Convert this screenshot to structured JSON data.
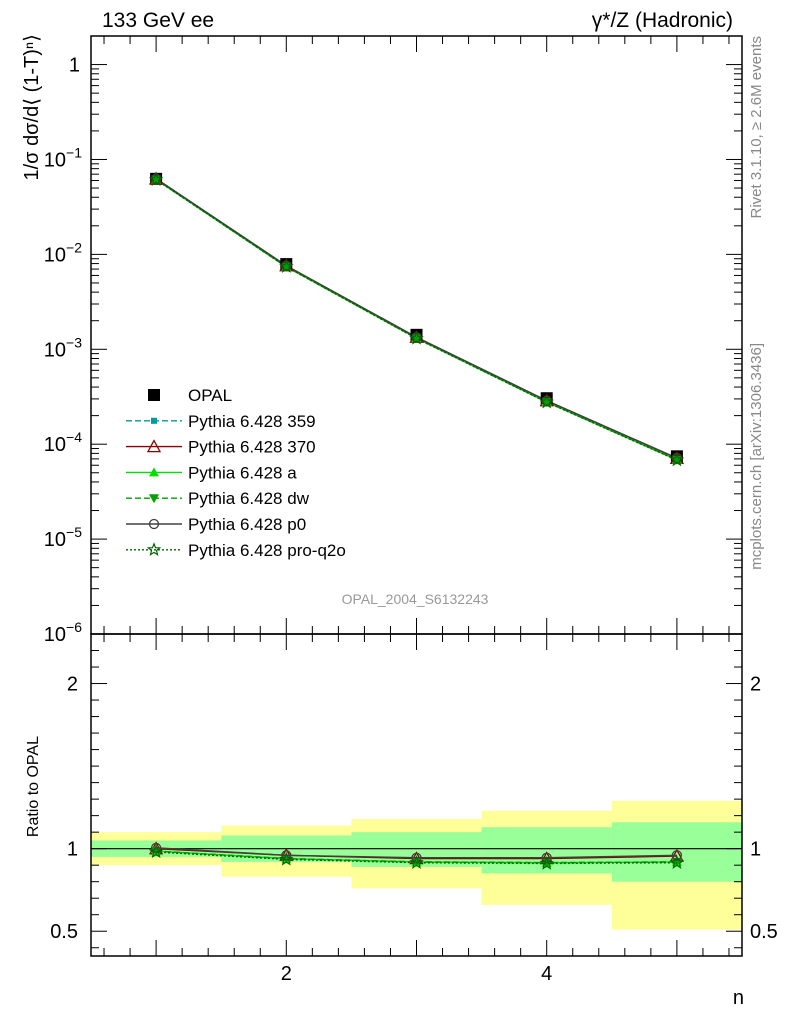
{
  "header": {
    "left": "133 GeV ee",
    "right": "γ*/Z (Hadronic)"
  },
  "side_labels": {
    "rivet": "Rivet 3.1.10, ≥ 2.6M events",
    "mcplots": "mcplots.cern.ch [arXiv:1306.3436]"
  },
  "watermark": "OPAL_2004_S6132243",
  "colors": {
    "ref": "#000000",
    "p359": "#009a9a",
    "p370": "#8b0000",
    "pa": "#00e000",
    "pdw": "#00a000",
    "pp0": "#404040",
    "pq2o": "#006400",
    "band_inner": "#99ff99",
    "band_outer": "#ffff99"
  },
  "chart_data": [
    {
      "type": "line",
      "panel": "main",
      "ylabel": "1/σ dσ/d⟨ (1-T)ⁿ⟩",
      "yscale": "log",
      "xlim": [
        0.5,
        5.5
      ],
      "ylim": [
        1e-06,
        2
      ],
      "y_ticks": [
        {
          "v": 1,
          "label": "1"
        },
        {
          "v": 0.1,
          "label": "10",
          "exp": "−1"
        },
        {
          "v": 0.01,
          "label": "10",
          "exp": "−2"
        },
        {
          "v": 0.001,
          "label": "10",
          "exp": "−3"
        },
        {
          "v": 0.0001,
          "label": "10",
          "exp": "−4"
        },
        {
          "v": 1e-05,
          "label": "10",
          "exp": "−5"
        },
        {
          "v": 1e-06,
          "label": "10",
          "exp": "−6"
        }
      ],
      "legend_position": "lower-left",
      "x": [
        1,
        2,
        3,
        4,
        5
      ],
      "series": [
        {
          "name": "OPAL",
          "key": "ref",
          "marker": "square",
          "line": "none",
          "values": [
            0.0625,
            0.0079,
            0.00142,
            0.000305,
            7.45e-05
          ]
        },
        {
          "name": "Pythia 6.428 359",
          "key": "p359",
          "marker": "smallsquare",
          "line": "dashed",
          "values": [
            0.0615,
            0.0074,
            0.00131,
            0.000278,
            6.85e-05
          ]
        },
        {
          "name": "Pythia 6.428 370",
          "key": "p370",
          "marker": "opentriangle",
          "line": "solid",
          "values": [
            0.0625,
            0.0076,
            0.00134,
            0.000287,
            7.1e-05
          ]
        },
        {
          "name": "Pythia 6.428 a",
          "key": "pa",
          "marker": "triangle",
          "line": "solid",
          "values": [
            0.0615,
            0.0074,
            0.00131,
            0.000278,
            6.85e-05
          ]
        },
        {
          "name": "Pythia 6.428 dw",
          "key": "pdw",
          "marker": "invtriangle",
          "line": "dashed",
          "values": [
            0.0615,
            0.0074,
            0.00131,
            0.000278,
            6.85e-05
          ]
        },
        {
          "name": "Pythia 6.428 p0",
          "key": "pp0",
          "marker": "opencircle",
          "line": "solid",
          "values": [
            0.0628,
            0.0076,
            0.00134,
            0.000288,
            7.15e-05
          ]
        },
        {
          "name": "Pythia 6.428 pro-q2o",
          "key": "pq2o",
          "marker": "star",
          "line": "dotted",
          "values": [
            0.0612,
            0.0074,
            0.0013,
            0.000277,
            6.8e-05
          ]
        }
      ]
    },
    {
      "type": "line",
      "panel": "ratio",
      "ylabel": "Ratio to OPAL",
      "xlabel": "n",
      "ylim": [
        0.35,
        2.3
      ],
      "y_ticks": [
        {
          "v": 0.5,
          "label": "0.5"
        },
        {
          "v": 1,
          "label": "1"
        },
        {
          "v": 2,
          "label": "2"
        }
      ],
      "x_ticks": [
        {
          "v": 2,
          "label": "2"
        },
        {
          "v": 4,
          "label": "4"
        }
      ],
      "x": [
        1,
        2,
        3,
        4,
        5
      ],
      "bands": {
        "outer": [
          [
            0.9,
            1.1
          ],
          [
            0.83,
            1.14
          ],
          [
            0.76,
            1.18
          ],
          [
            0.66,
            1.23
          ],
          [
            0.51,
            1.29
          ]
        ],
        "inner": [
          [
            0.95,
            1.05
          ],
          [
            0.92,
            1.08
          ],
          [
            0.89,
            1.1
          ],
          [
            0.85,
            1.13
          ],
          [
            0.8,
            1.16
          ]
        ]
      },
      "series": [
        {
          "name": "Pythia 6.428 359",
          "key": "p359",
          "values": [
            0.985,
            0.94,
            0.92,
            0.915,
            0.92
          ]
        },
        {
          "name": "Pythia 6.428 370",
          "key": "p370",
          "values": [
            1.0,
            0.96,
            0.94,
            0.94,
            0.955
          ]
        },
        {
          "name": "Pythia 6.428 a",
          "key": "pa",
          "values": [
            0.985,
            0.94,
            0.92,
            0.915,
            0.92
          ]
        },
        {
          "name": "Pythia 6.428 dw",
          "key": "pdw",
          "values": [
            0.985,
            0.94,
            0.92,
            0.915,
            0.92
          ]
        },
        {
          "name": "Pythia 6.428 p0",
          "key": "pp0",
          "values": [
            1.005,
            0.96,
            0.945,
            0.945,
            0.96
          ]
        },
        {
          "name": "Pythia 6.428 pro-q2o",
          "key": "pq2o",
          "values": [
            0.98,
            0.935,
            0.915,
            0.91,
            0.915
          ]
        }
      ]
    }
  ]
}
